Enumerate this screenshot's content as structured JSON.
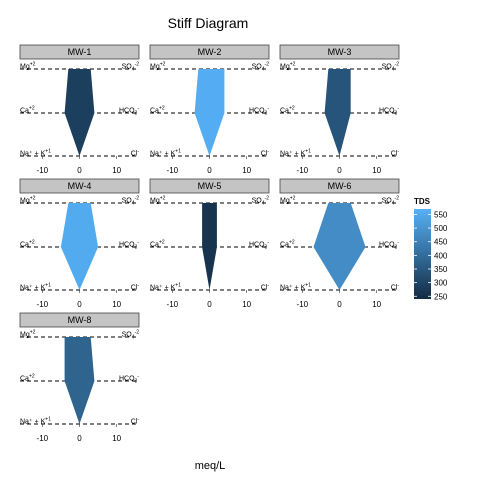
{
  "chart_data": {
    "type": "stiff",
    "title": "Stiff Diagram",
    "xlabel": "meq/L",
    "ylabel": "",
    "xlim": [
      -16,
      16
    ],
    "x_ticks": [
      -10,
      0,
      10
    ],
    "x_tick_labels": [
      "-10",
      "0",
      "10"
    ],
    "ion_labels_left": [
      {
        "base": "Mg",
        "sup": "+2"
      },
      {
        "base": "Ca",
        "sup": "+2"
      },
      {
        "base": "Na⁺ + K",
        "sup": "+1"
      }
    ],
    "ion_labels_right": [
      {
        "base": "SO",
        "sub": "4",
        "sup": "-2"
      },
      {
        "base": "HCO",
        "sub": "3",
        "sup": "-"
      },
      {
        "base": "Cl",
        "sup": "-"
      }
    ],
    "color_scale": {
      "title": "TDS",
      "low_color": "#132B43",
      "high_color": "#56B1F7",
      "range": [
        240,
        570
      ],
      "ticks": [
        250,
        300,
        350,
        400,
        450,
        500,
        550
      ]
    },
    "panels": [
      {
        "name": "MW-1",
        "tds": 290,
        "cations": [
          -3,
          -4,
          0
        ],
        "anions": [
          3,
          4,
          0
        ]
      },
      {
        "name": "MW-2",
        "tds": 560,
        "cations": [
          -3,
          -4,
          0
        ],
        "anions": [
          4,
          4,
          0
        ]
      },
      {
        "name": "MW-3",
        "tds": 340,
        "cations": [
          -3,
          -4,
          0
        ],
        "anions": [
          3,
          3,
          0
        ]
      },
      {
        "name": "MW-4",
        "tds": 555,
        "cations": [
          -3,
          -5,
          0
        ],
        "anions": [
          3,
          5,
          0
        ]
      },
      {
        "name": "MW-5",
        "tds": 260,
        "cations": [
          -2,
          -2,
          0
        ],
        "anions": [
          2,
          2,
          0
        ]
      },
      {
        "name": "MW-6",
        "tds": 480,
        "cations": [
          -3,
          -7,
          0
        ],
        "anions": [
          3,
          7,
          0
        ]
      },
      {
        "name": "MW-8",
        "tds": 380,
        "cations": [
          -4,
          -4,
          0
        ],
        "anions": [
          3,
          4,
          0
        ]
      }
    ]
  }
}
